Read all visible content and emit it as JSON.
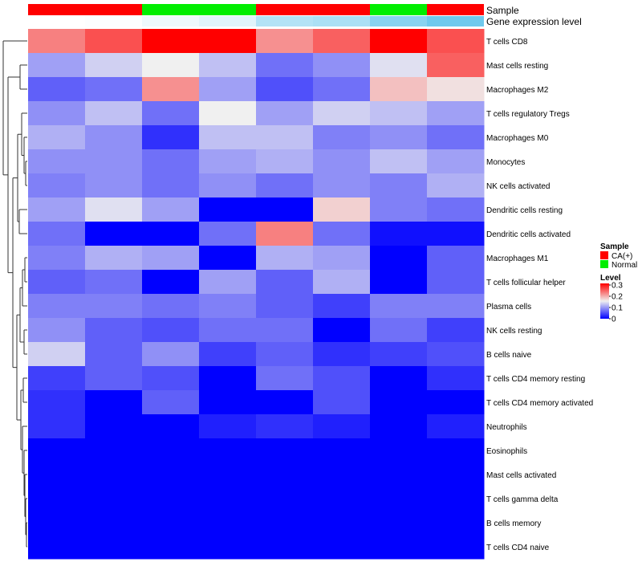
{
  "chart_data": {
    "type": "heatmap",
    "annotation_tracks": [
      "Sample",
      "Gene expression level"
    ],
    "columns": [
      {
        "sample": "CA(+)",
        "expression_level": 0.0
      },
      {
        "sample": "CA(+)",
        "expression_level": 0.02
      },
      {
        "sample": "Normal",
        "expression_level": 0.1
      },
      {
        "sample": "Normal",
        "expression_level": 0.18
      },
      {
        "sample": "CA(+)",
        "expression_level": 0.45
      },
      {
        "sample": "CA(+)",
        "expression_level": 0.5
      },
      {
        "sample": "Normal",
        "expression_level": 0.7
      },
      {
        "sample": "CA(+)",
        "expression_level": 0.85
      }
    ],
    "rows": [
      "T cells CD8",
      "Mast cells resting",
      "Macrophages M2",
      "T cells regulatory  Tregs",
      "Macrophages M0",
      "Monocytes",
      "NK cells activated",
      "Dendritic cells resting",
      "Dendritic cells activated",
      "Macrophages M1",
      "T cells follicular helper",
      "Plasma cells",
      "NK cells resting",
      "B cells naive",
      "T cells CD4 memory resting",
      "T cells CD4 memory activated",
      "Neutrophils",
      "Eosinophils",
      "Mast cells activated",
      "T cells gamma delta",
      "B cells memory",
      "T cells CD4 naive"
    ],
    "values": [
      [
        0.22,
        0.25,
        0.3,
        0.3,
        0.21,
        0.24,
        0.3,
        0.25
      ],
      [
        0.1,
        0.13,
        0.15,
        0.12,
        0.07,
        0.09,
        0.14,
        0.24
      ],
      [
        0.06,
        0.07,
        0.21,
        0.1,
        0.05,
        0.07,
        0.18,
        0.16
      ],
      [
        0.09,
        0.12,
        0.07,
        0.15,
        0.1,
        0.13,
        0.12,
        0.1
      ],
      [
        0.11,
        0.09,
        0.03,
        0.12,
        0.12,
        0.08,
        0.09,
        0.07
      ],
      [
        0.09,
        0.09,
        0.07,
        0.1,
        0.11,
        0.09,
        0.12,
        0.1
      ],
      [
        0.08,
        0.09,
        0.07,
        0.09,
        0.07,
        0.09,
        0.08,
        0.11
      ],
      [
        0.1,
        0.14,
        0.1,
        0.0,
        0.0,
        0.17,
        0.08,
        0.07
      ],
      [
        0.07,
        0.0,
        0.0,
        0.07,
        0.22,
        0.07,
        0.01,
        0.01
      ],
      [
        0.08,
        0.11,
        0.1,
        0.0,
        0.11,
        0.1,
        0.0,
        0.06
      ],
      [
        0.06,
        0.07,
        0.0,
        0.1,
        0.06,
        0.11,
        0.0,
        0.06
      ],
      [
        0.08,
        0.08,
        0.07,
        0.08,
        0.06,
        0.04,
        0.08,
        0.08
      ],
      [
        0.09,
        0.06,
        0.05,
        0.07,
        0.07,
        0.0,
        0.07,
        0.04
      ],
      [
        0.13,
        0.06,
        0.09,
        0.04,
        0.06,
        0.03,
        0.04,
        0.05
      ],
      [
        0.04,
        0.06,
        0.05,
        0.0,
        0.07,
        0.05,
        0.0,
        0.03
      ],
      [
        0.03,
        0.0,
        0.06,
        0.0,
        0.0,
        0.05,
        0.0,
        0.0
      ],
      [
        0.03,
        0.0,
        0.0,
        0.02,
        0.03,
        0.02,
        0.0,
        0.02
      ],
      [
        0.0,
        0.0,
        0.0,
        0.0,
        0.0,
        0.0,
        0.0,
        0.0
      ],
      [
        0.0,
        0.0,
        0.0,
        0.0,
        0.0,
        0.0,
        0.0,
        0.0
      ],
      [
        0.0,
        0.0,
        0.0,
        0.0,
        0.0,
        0.0,
        0.0,
        0.0
      ],
      [
        0.0,
        0.0,
        0.0,
        0.0,
        0.0,
        0.0,
        0.0,
        0.0
      ],
      [
        0.0,
        0.0,
        0.0,
        0.0,
        0.0,
        0.0,
        0.0,
        0.0
      ]
    ],
    "color_scale": {
      "min": 0,
      "mid": 0.15,
      "max": 0.3,
      "low": "#0000ff",
      "midColor": "#f0f0f0",
      "high": "#ff0000"
    },
    "expression_scale": {
      "low": "#ffffff",
      "high": "#56c0ea"
    },
    "legend": {
      "placement": "right",
      "sample_title": "Sample",
      "sample_entries": [
        {
          "label": "CA(+)",
          "color": "#ff0000"
        },
        {
          "label": "Normal",
          "color": "#00ee00"
        }
      ],
      "level_title": "Level",
      "level_ticks": [
        "0.3",
        "0.2",
        "0.1",
        "0"
      ]
    },
    "row_dendrogram": true
  }
}
